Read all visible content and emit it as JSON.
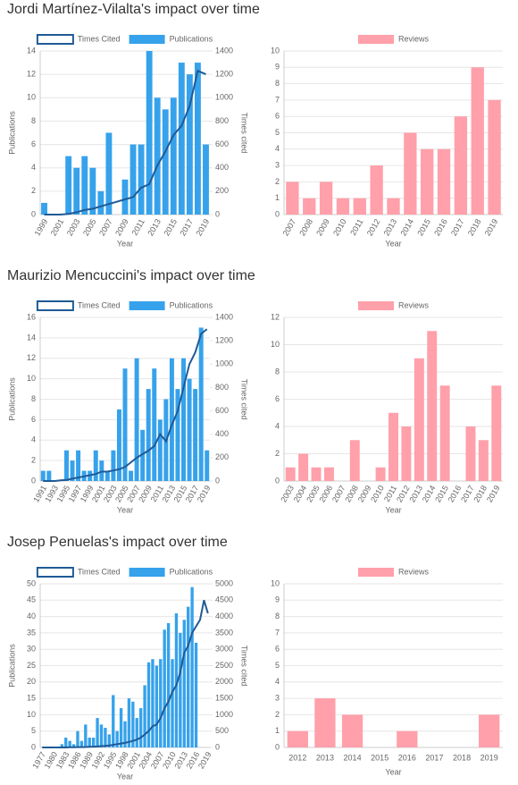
{
  "headings": [
    "Jordi Martínez-Vilalta's impact over time",
    "Maurizio Mencuccini's impact over time",
    "Josep Penuelas's impact over time"
  ],
  "chart_data": [
    {
      "type": "combo",
      "xlabel": "Year",
      "ylabel": "Publications",
      "y2label": "Times cited",
      "categories": [
        "1999",
        null,
        "2001",
        null,
        "2003",
        null,
        "2005",
        null,
        "2007",
        null,
        "2009",
        null,
        "2011",
        null,
        "2013",
        null,
        "2015",
        null,
        "2017",
        null,
        "2019"
      ],
      "series": [
        {
          "name": "Times Cited",
          "color": "#1f5a96",
          "axis": "y2",
          "values": [
            0,
            0,
            0,
            5,
            20,
            40,
            50,
            70,
            90,
            110,
            130,
            150,
            230,
            260,
            420,
            540,
            680,
            760,
            930,
            1230,
            1200
          ]
        },
        {
          "name": "Publications",
          "color": "#36a2eb",
          "values": [
            1,
            0,
            0,
            5,
            4,
            5,
            4,
            2,
            7,
            0,
            3,
            6,
            6,
            14,
            10,
            9,
            10,
            13,
            12,
            13,
            6
          ]
        }
      ],
      "ylim": [
        0,
        14
      ],
      "yticks": [
        0,
        2,
        4,
        6,
        8,
        10,
        12,
        14
      ],
      "y2lim": [
        0,
        1400
      ],
      "y2ticks": [
        0,
        200,
        400,
        600,
        800,
        1000,
        1200,
        1400
      ],
      "grid": true
    },
    {
      "type": "bar",
      "xlabel": "Year",
      "categories": [
        "2007",
        "2008",
        "2009",
        "2010",
        "2011",
        "2012",
        "2013",
        "2014",
        "2015",
        "2016",
        "2017",
        "2018",
        "2019"
      ],
      "series": [
        {
          "name": "Reviews",
          "color": "#ffa0aa",
          "values": [
            2,
            1,
            2,
            1,
            1,
            3,
            1,
            5,
            4,
            4,
            6,
            9,
            7
          ]
        }
      ],
      "ylim": [
        0,
        10
      ],
      "yticks": [
        0,
        1,
        2,
        3,
        4,
        5,
        6,
        7,
        8,
        9,
        10
      ],
      "grid": true
    },
    {
      "type": "combo",
      "xlabel": "Year",
      "ylabel": "Publications",
      "y2label": "Times cited",
      "categories": [
        "1991",
        null,
        "1993",
        null,
        "1995",
        null,
        "1997",
        null,
        "1999",
        null,
        "2001",
        null,
        "2003",
        null,
        "2005",
        null,
        "2007",
        null,
        "2009",
        null,
        "2011",
        null,
        "2013",
        null,
        "2015",
        null,
        "2017",
        null,
        "2019"
      ],
      "series": [
        {
          "name": "Times Cited",
          "color": "#1f5a96",
          "axis": "y2",
          "values": [
            0,
            0,
            0,
            5,
            10,
            20,
            30,
            40,
            50,
            60,
            80,
            80,
            90,
            100,
            120,
            160,
            200,
            230,
            260,
            300,
            400,
            340,
            480,
            600,
            800,
            1000,
            1100,
            1260,
            1300
          ]
        },
        {
          "name": "Publications",
          "color": "#36a2eb",
          "values": [
            1,
            1,
            0,
            0,
            3,
            2,
            3,
            1,
            1,
            3,
            2,
            1,
            3,
            7,
            11,
            1,
            12,
            5,
            9,
            11,
            6,
            8,
            12,
            9,
            12,
            10,
            9,
            15,
            3
          ]
        }
      ],
      "ylim": [
        0,
        16
      ],
      "yticks": [
        0,
        2,
        4,
        6,
        8,
        10,
        12,
        14,
        16
      ],
      "y2lim": [
        0,
        1400
      ],
      "y2ticks": [
        0,
        200,
        400,
        600,
        800,
        1000,
        1200,
        1400
      ],
      "grid": true
    },
    {
      "type": "bar",
      "xlabel": "Year",
      "categories": [
        "2003",
        "2004",
        "2005",
        "2006",
        "2007",
        "2008",
        "2009",
        "2010",
        "2011",
        "2012",
        "2013",
        "2014",
        "2015",
        "2016",
        "2017",
        "2018",
        "2019"
      ],
      "series": [
        {
          "name": "Reviews",
          "color": "#ffa0aa",
          "values": [
            1,
            2,
            1,
            1,
            0,
            3,
            0,
            1,
            5,
            4,
            9,
            11,
            7,
            0,
            4,
            3,
            7
          ]
        }
      ],
      "ylim": [
        0,
        12
      ],
      "yticks": [
        0,
        2,
        4,
        6,
        8,
        10,
        12
      ],
      "grid": true
    },
    {
      "type": "combo",
      "xlabel": "Year",
      "ylabel": "Publications",
      "y2label": "Times cited",
      "categories": [
        "1977",
        null,
        null,
        "1980",
        null,
        null,
        "1983",
        null,
        null,
        "1986",
        null,
        null,
        "1989",
        null,
        null,
        "1992",
        null,
        null,
        "1995",
        null,
        null,
        "1998",
        null,
        null,
        "2001",
        null,
        null,
        "2004",
        null,
        null,
        "2007",
        null,
        null,
        "2010",
        null,
        null,
        "2013",
        null,
        null,
        "2016",
        null,
        null,
        "2019"
      ],
      "series": [
        {
          "name": "Times Cited",
          "color": "#1f5a96",
          "axis": "y2",
          "values": [
            0,
            0,
            0,
            0,
            0,
            0,
            0,
            5,
            5,
            10,
            10,
            15,
            20,
            25,
            30,
            40,
            50,
            60,
            80,
            100,
            120,
            140,
            170,
            200,
            240,
            300,
            400,
            500,
            650,
            700,
            900,
            1200,
            1400,
            1700,
            1900,
            2300,
            2900,
            3100,
            3500,
            3700,
            3900,
            4500,
            4100
          ]
        },
        {
          "name": "Publications",
          "color": "#36a2eb",
          "values": [
            0,
            0,
            0,
            0,
            0,
            1,
            3,
            2,
            1,
            5,
            2,
            7,
            3,
            3,
            9,
            7,
            6,
            4,
            16,
            5,
            12,
            8,
            15,
            14,
            9,
            12,
            19,
            26,
            27,
            25,
            27,
            36,
            38,
            27,
            41,
            35,
            39,
            43,
            49,
            32,
            0,
            0,
            0
          ]
        }
      ],
      "ylim": [
        0,
        50
      ],
      "yticks": [
        0,
        5,
        10,
        15,
        20,
        25,
        30,
        35,
        40,
        45,
        50
      ],
      "y2lim": [
        0,
        5000
      ],
      "y2ticks": [
        0,
        500,
        1000,
        1500,
        2000,
        2500,
        3000,
        3500,
        4000,
        4500,
        5000
      ],
      "grid": true
    },
    {
      "type": "bar",
      "xlabel": "Year",
      "categories": [
        "2012",
        "2013",
        "2014",
        "2015",
        "2016",
        "2017",
        "2018",
        "2019"
      ],
      "series": [
        {
          "name": "Reviews",
          "color": "#ffa0aa",
          "values": [
            1,
            3,
            2,
            0,
            1,
            0,
            0,
            2
          ]
        }
      ],
      "ylim": [
        0,
        10
      ],
      "yticks": [
        0,
        1,
        2,
        3,
        4,
        5,
        6,
        7,
        8,
        9,
        10
      ],
      "grid": true
    }
  ]
}
